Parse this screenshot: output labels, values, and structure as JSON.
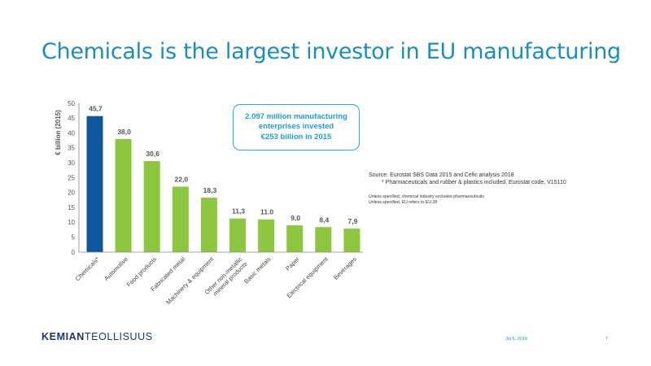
{
  "slide": {
    "title": "Chemicals is the largest investor in EU manufacturing"
  },
  "callout": {
    "line1": "2.097 million manufacturing",
    "line2": "enterprises invested",
    "line3": "€253 billion in 2015"
  },
  "source": {
    "line1": "Source: Eurostat SBS Data 2015 and Cefic analysis 2018",
    "line2": "* Pharmaceuticals and rubber & plastics included, Eurostat code, V15110"
  },
  "notes": {
    "line1": "Unless specified, chemical industry excludes pharmaceuticals",
    "line2": "Unless specified, EU refers to EU 28"
  },
  "footer": {
    "logo_part1": "KEMIAN",
    "logo_part2": "TEOLLISUUS",
    "date": "Jul 5, 2019",
    "page": "7"
  },
  "colors": {
    "highlight": "#0d579b",
    "bar": "#8dc63f",
    "title": "#1a8dc4",
    "callout": "#29a9d8"
  },
  "chart_data": {
    "type": "bar",
    "ylabel": "€ billion (2015)",
    "ylim": [
      0,
      50
    ],
    "yticks": [
      "0",
      "5",
      "10",
      "15",
      "20",
      "25",
      "30",
      "35",
      "40",
      "45",
      "50"
    ],
    "grid": false,
    "categories": [
      [
        "Chemicals*"
      ],
      [
        "Automotive"
      ],
      [
        "Food products"
      ],
      [
        "Fabricated metal"
      ],
      [
        "Machinery & equipment"
      ],
      [
        "Other non-metallic",
        "mineral products"
      ],
      [
        "Basic metals"
      ],
      [
        "Paper"
      ],
      [
        "Electrical equipment"
      ],
      [
        "Beverages"
      ]
    ],
    "values": [
      45.7,
      38.0,
      30.6,
      22.0,
      18.3,
      11.3,
      11.0,
      9.0,
      8.4,
      7.9
    ],
    "value_labels": [
      "45,7",
      "38,0",
      "30,6",
      "22,0",
      "18,3",
      "11,3",
      "11.0",
      "9,0",
      "8,4",
      "7,9"
    ],
    "highlight_index": 0
  }
}
